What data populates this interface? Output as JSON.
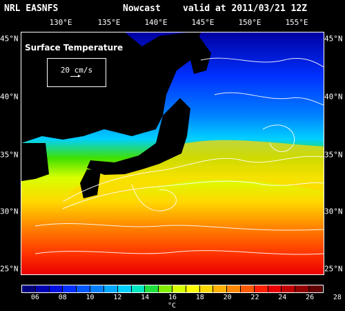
{
  "header": {
    "source": "NRL EASNFS",
    "product": "Nowcast",
    "valid": "valid at 2011/03/21 12Z"
  },
  "longitude_labels": [
    "130°E",
    "135°E",
    "140°E",
    "145°E",
    "150°E",
    "155°E"
  ],
  "latitude_labels": [
    "45°N",
    "40°N",
    "35°N",
    "30°N",
    "25°N"
  ],
  "map": {
    "title": "Surface Temperature",
    "scale_label": "20 cm/s",
    "land_color": "#000000",
    "vector_color": "#ffffff"
  },
  "colorbar": {
    "colors": [
      "#00007a",
      "#0000b0",
      "#0010e0",
      "#0030ff",
      "#0058ff",
      "#0080ff",
      "#00a8ff",
      "#00d0ff",
      "#00e8c0",
      "#20e040",
      "#80f000",
      "#d8ff00",
      "#ffff00",
      "#ffd800",
      "#ffb000",
      "#ff8800",
      "#ff5a00",
      "#ff2000",
      "#e80000",
      "#c00000",
      "#900000",
      "#600000"
    ],
    "tick_labels": [
      "06",
      "08",
      "10",
      "12",
      "14",
      "16",
      "18",
      "20",
      "22",
      "24",
      "26",
      "28"
    ],
    "unit": "°C"
  }
}
